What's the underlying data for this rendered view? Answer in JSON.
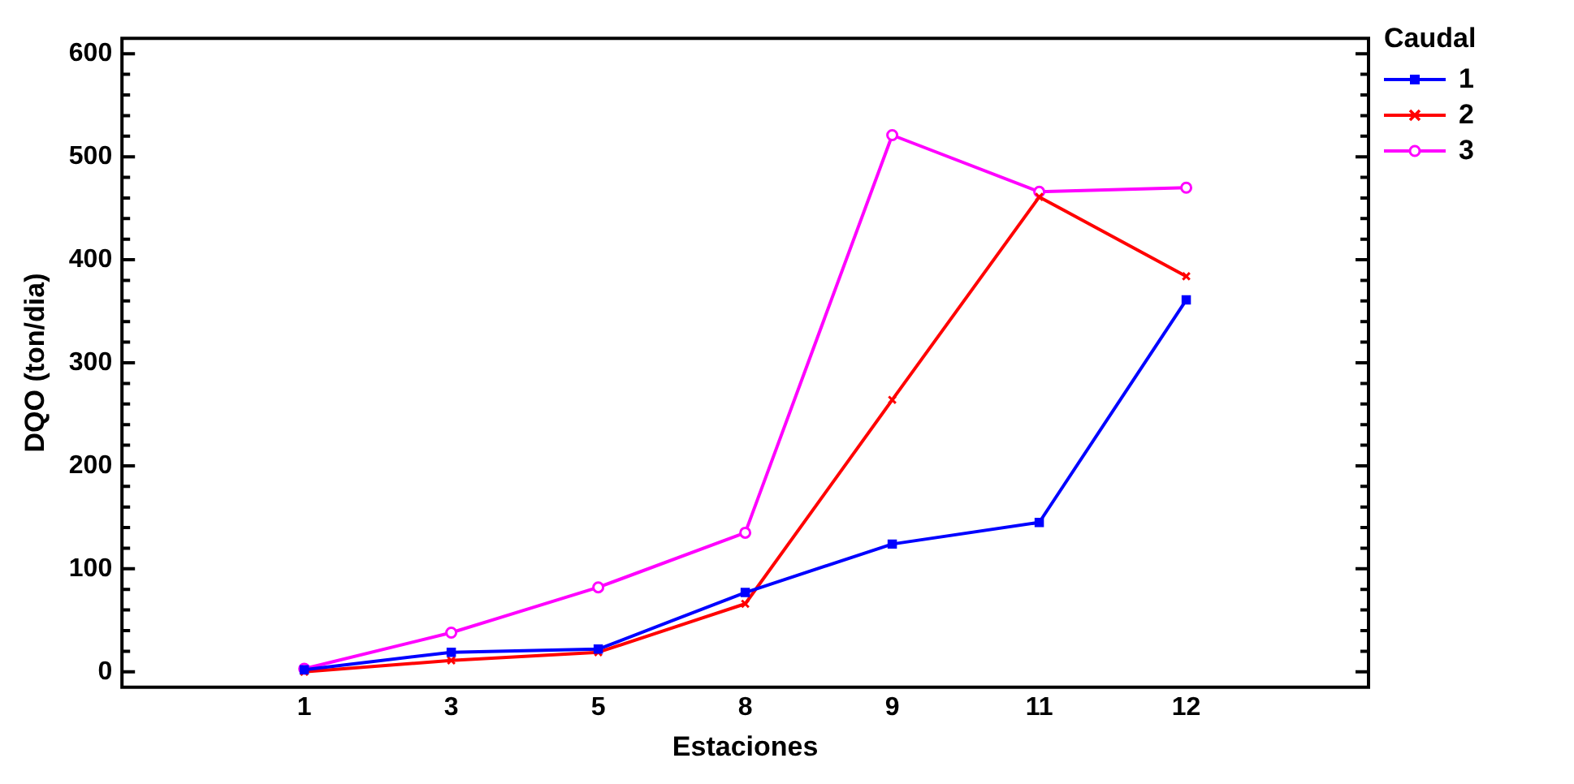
{
  "chart_data": {
    "type": "line",
    "xlabel": "Estaciones",
    "ylabel": "DQO (ton/dia)",
    "legend_title": "Caudal",
    "legend": "top right",
    "categories": [
      "1",
      "3",
      "5",
      "8",
      "9",
      "11",
      "12"
    ],
    "ylim": [
      -15,
      615
    ],
    "yticks": [
      0,
      {
        "value": 20,
        "label": null
      },
      {
        "value": 40,
        "label": null
      },
      {
        "value": 60,
        "label": null
      },
      {
        "value": 80,
        "label": null
      },
      100,
      {
        "value": 120,
        "label": null
      },
      {
        "value": 140,
        "label": null
      },
      {
        "value": 160,
        "label": null
      },
      {
        "value": 180,
        "label": null
      },
      200,
      {
        "value": 220,
        "label": null
      },
      {
        "value": 240,
        "label": null
      },
      {
        "value": 260,
        "label": null
      },
      {
        "value": 280,
        "label": null
      },
      300,
      {
        "value": 320,
        "label": null
      },
      {
        "value": 340,
        "label": null
      },
      {
        "value": 360,
        "label": null
      },
      {
        "value": 380,
        "label": null
      },
      400,
      {
        "value": 420,
        "label": null
      },
      {
        "value": 440,
        "label": null
      },
      {
        "value": 460,
        "label": null
      },
      {
        "value": 480,
        "label": null
      },
      500,
      {
        "value": 520,
        "label": null
      },
      {
        "value": 540,
        "label": null
      },
      {
        "value": 560,
        "label": null
      },
      {
        "value": 580,
        "label": null
      },
      600
    ],
    "grid": false,
    "line_style": "solid",
    "series": [
      {
        "name": "1",
        "color": "#0000ff",
        "marker": "square",
        "values": [
          2,
          19,
          22,
          77,
          124,
          145,
          361
        ]
      },
      {
        "name": "2",
        "color": "#ff0000",
        "marker": "cross",
        "values": [
          0,
          11,
          19,
          66,
          264,
          461,
          384
        ]
      },
      {
        "name": "3",
        "color": "#ff00ff",
        "marker": "circle",
        "values": [
          3,
          38,
          82,
          135,
          521,
          466,
          470
        ]
      }
    ]
  }
}
